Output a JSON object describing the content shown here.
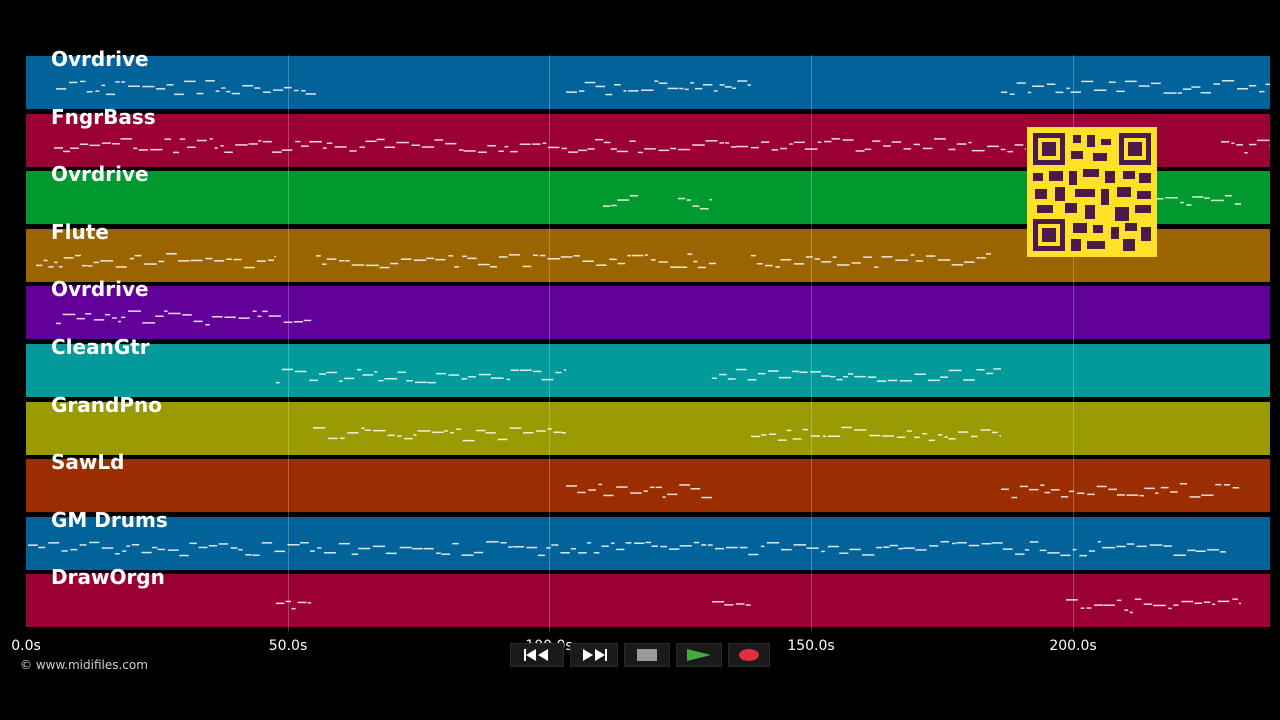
{
  "tracks": [
    {
      "label": "Ovrdrive",
      "color": "#02629a"
    },
    {
      "label": "FngrBass",
      "color": "#9a0033"
    },
    {
      "label": "Ovrdrive",
      "color": "#029a2e"
    },
    {
      "label": "Flute",
      "color": "#9a6500"
    },
    {
      "label": "Ovrdrive",
      "color": "#62009a"
    },
    {
      "label": "CleanGtr",
      "color": "#029a9a"
    },
    {
      "label": "GrandPno",
      "color": "#9a9a02"
    },
    {
      "label": "SawLd",
      "color": "#9a2e00"
    },
    {
      "label": "GM Drums",
      "color": "#02629a"
    },
    {
      "label": "DrawOrgn",
      "color": "#9a0033"
    }
  ],
  "timeline": {
    "ticks": [
      "0.0s",
      "50.0s",
      "100.0s",
      "150.0s",
      "200.0s"
    ]
  },
  "copyright": "© www.midifiles.com",
  "transport": {
    "buttons": [
      "rewind-icon",
      "fast-forward-icon",
      "stop-icon",
      "play-icon",
      "record-icon"
    ],
    "play_color": "#3fae3f",
    "record_color": "#e0303a"
  },
  "qr_color": "#ffe12a"
}
